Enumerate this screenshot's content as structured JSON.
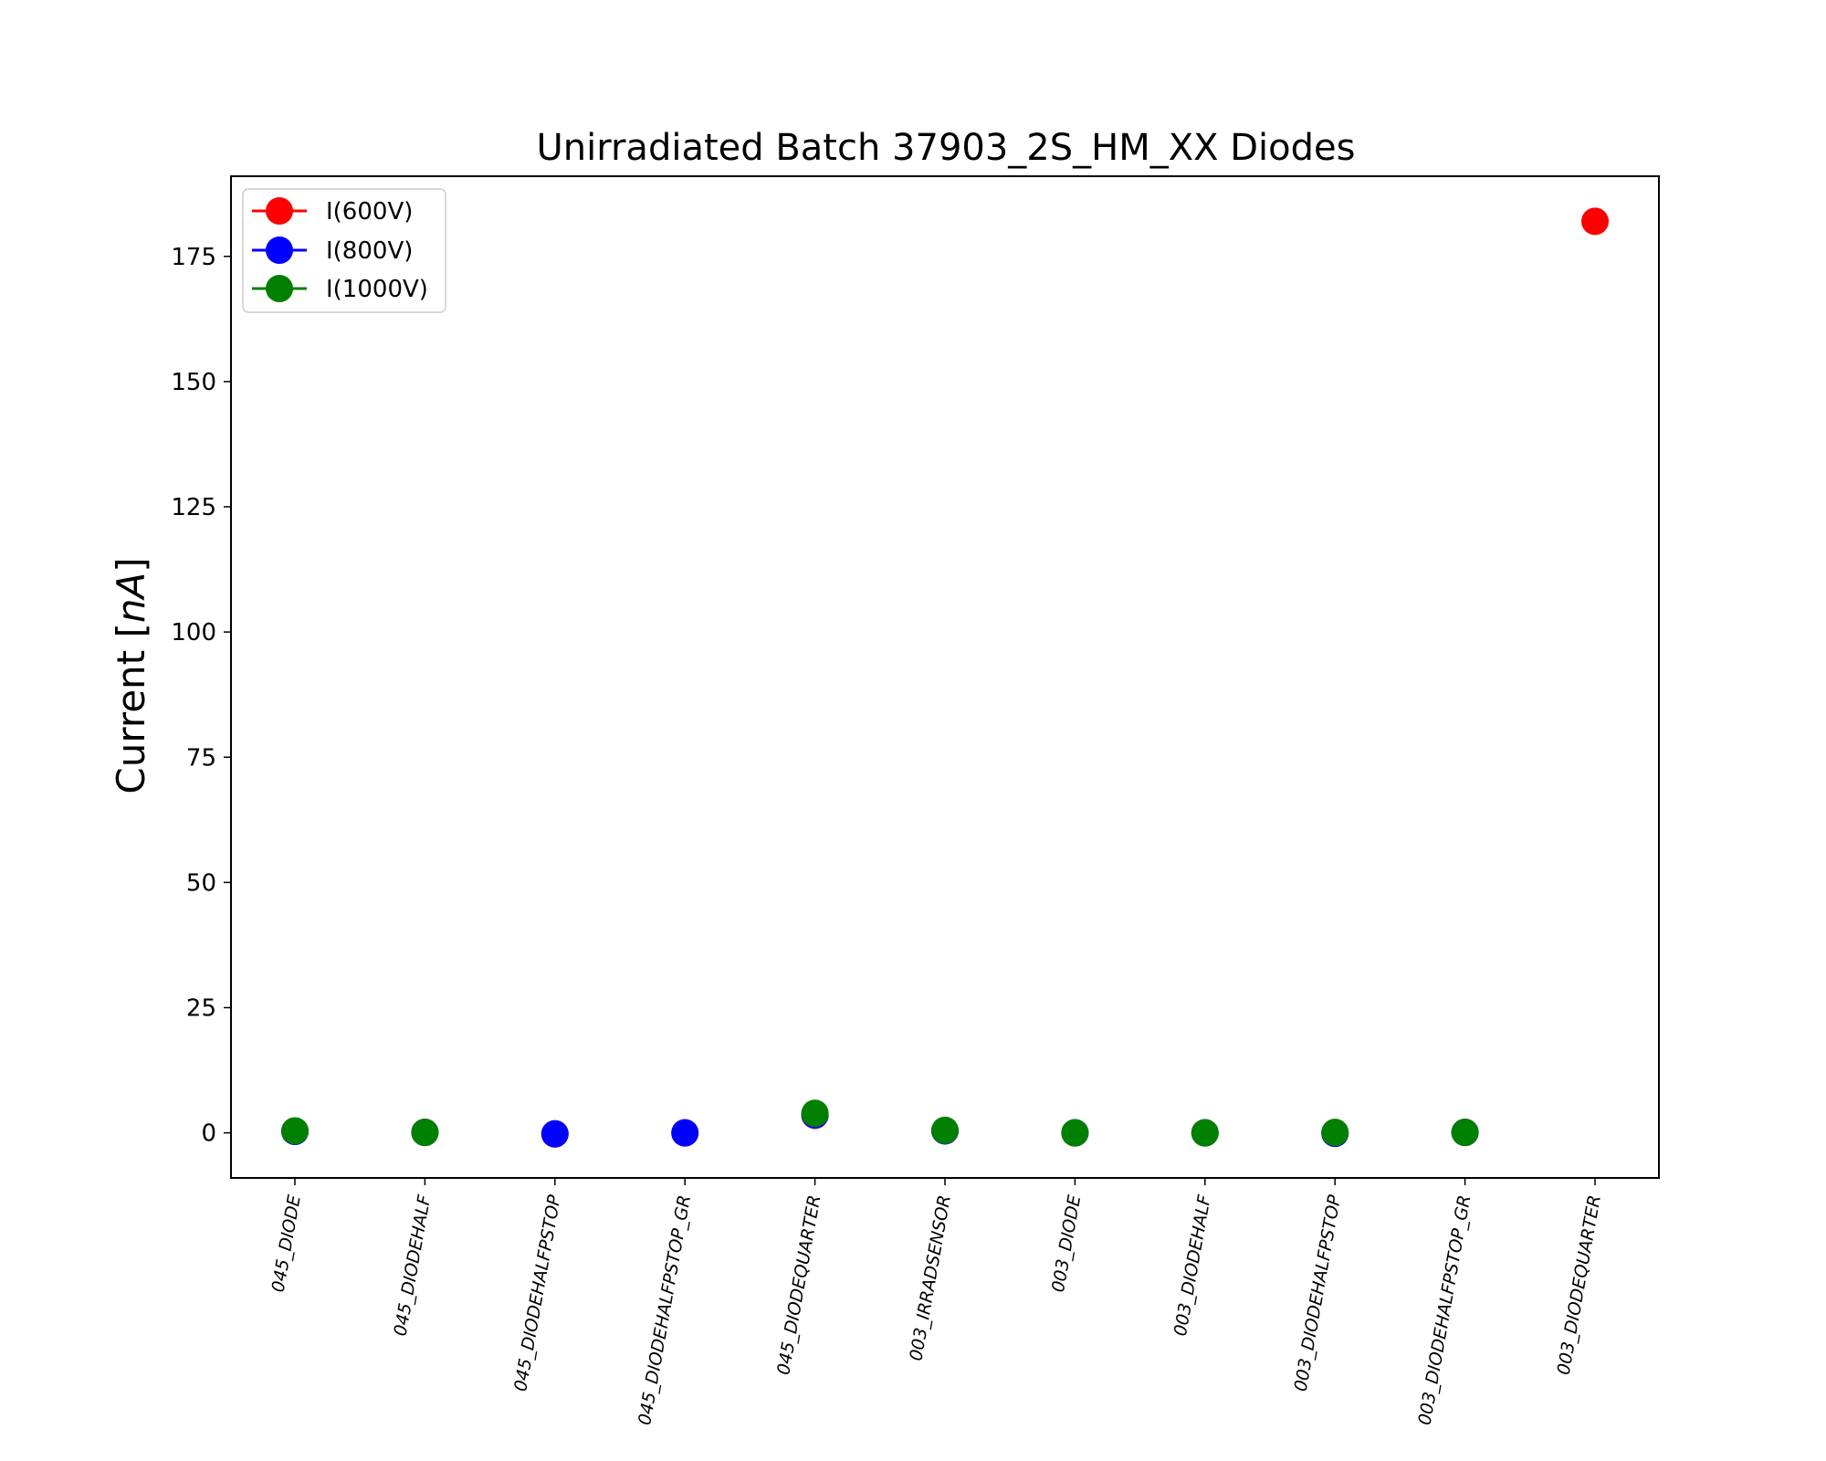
{
  "chart_data": {
    "type": "scatter",
    "title": "Unirradiated Batch 37903_2S_HM_XX Diodes",
    "xlabel": "",
    "ylabel": "Current [nA]",
    "ylim": [
      -9,
      191
    ],
    "yticks": [
      0,
      25,
      50,
      75,
      100,
      125,
      150,
      175
    ],
    "grid": false,
    "legend_position": "top-left",
    "categories": [
      "045_DIODE",
      "045_DIODEHALF",
      "045_DIODEHALFPSTOP",
      "045_DIODEHALFPSTOP_GR",
      "045_DIODEQUARTER",
      "003_IRRADSENSOR",
      "003_DIODE",
      "003_DIODEHALF",
      "003_DIODEHALFPSTOP",
      "003_DIODEHALFPSTOP_GR",
      "003_DIODEQUARTER"
    ],
    "series": [
      {
        "name": "I(600V)",
        "color": "#ff0000",
        "values": [
          0.3,
          0.1,
          -0.2,
          0.0,
          3.5,
          0.4,
          0.0,
          0.0,
          -0.1,
          0.1,
          182.0
        ]
      },
      {
        "name": "I(800V)",
        "color": "#0000ff",
        "values": [
          0.3,
          0.1,
          -0.2,
          0.0,
          3.6,
          0.4,
          0.0,
          0.0,
          -0.1,
          0.1,
          null
        ]
      },
      {
        "name": "I(1000V)",
        "color": "#008000",
        "values": [
          0.4,
          0.1,
          null,
          null,
          3.9,
          0.5,
          0.0,
          0.0,
          0.1,
          0.1,
          null
        ]
      }
    ]
  }
}
